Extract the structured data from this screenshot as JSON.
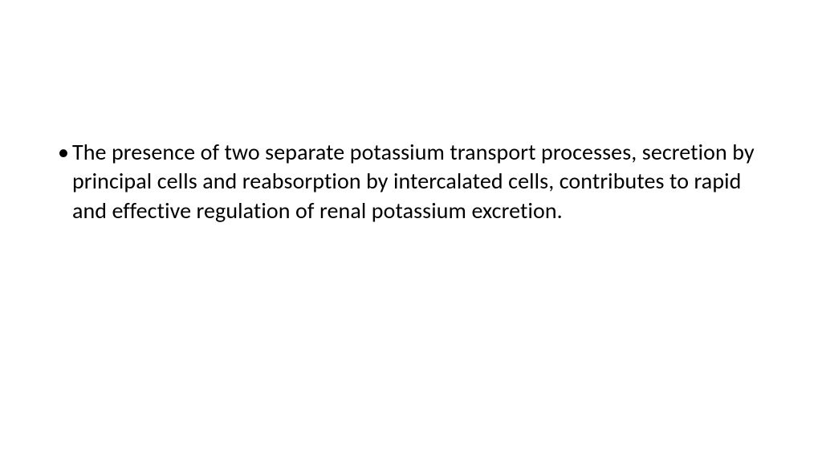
{
  "slide": {
    "background_color": "#ffffff",
    "text_color": "#000000",
    "font_family": "Calibri, 'Segoe UI', Arial, sans-serif",
    "font_size": 28,
    "line_height": 1.3,
    "bullet": {
      "marker": "•",
      "text": "The presence of two separate potassium transport processes, secretion by principal cells and reabsorption by intercalated cells, contributes to rapid and effective regulation of renal potassium excretion."
    }
  }
}
